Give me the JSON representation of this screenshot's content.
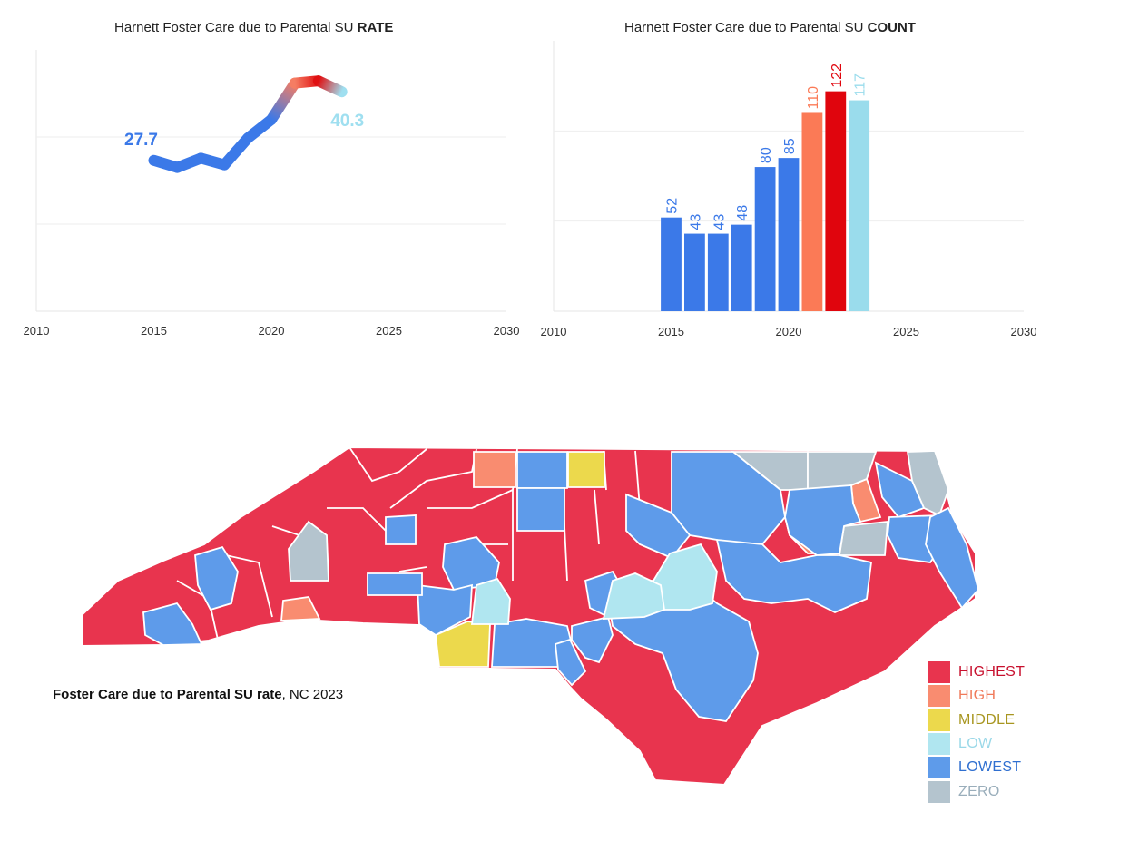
{
  "rate_chart": {
    "title_prefix": "Harnett Foster Care due to Parental SU ",
    "title_bold": "RATE"
  },
  "count_chart": {
    "title_prefix": "Harnett Foster Care due to Parental SU ",
    "title_bold": "COUNT"
  },
  "map": {
    "caption_bold": "Foster Care due to Parental SU rate",
    "caption_rest": ", NC 2023"
  },
  "legend": [
    {
      "label": "HIGHEST",
      "color": "#e8344e",
      "text_color": "#c8102e"
    },
    {
      "label": "HIGH",
      "color": "#f98c70",
      "text_color": "#f07a5a"
    },
    {
      "label": "MIDDLE",
      "color": "#ecd94c",
      "text_color": "#a89620"
    },
    {
      "label": "LOW",
      "color": "#b0e6f0",
      "text_color": "#9ad8e8"
    },
    {
      "label": "LOWEST",
      "color": "#5e9bea",
      "text_color": "#2f6fd0"
    },
    {
      "label": "ZERO",
      "color": "#b4c4ce",
      "text_color": "#9aaebb"
    }
  ],
  "chart_data": [
    {
      "type": "line",
      "title": "Harnett Foster Care due to Parental SU RATE",
      "x": [
        2015,
        2016,
        2017,
        2018,
        2019,
        2020,
        2021,
        2022,
        2023
      ],
      "values": [
        27.7,
        26.4,
        28.1,
        26.9,
        31.8,
        35.2,
        41.9,
        42.3,
        40.3
      ],
      "colors": [
        "#3b79e8",
        "#3b79e8",
        "#3b79e8",
        "#3b79e8",
        "#3b79e8",
        "#3b79e8",
        "#f57d63",
        "#e01012",
        "#9fdff0"
      ],
      "labels": [
        {
          "x": 2015,
          "text": "27.7",
          "color": "#3b79e8"
        },
        {
          "x": 2023,
          "text": "40.3",
          "color": "#9fdff0"
        }
      ],
      "xlim": [
        2010,
        2030
      ],
      "ylim": [
        0,
        48
      ],
      "xticks": [
        "2010",
        "2015",
        "2020",
        "2025",
        "2030"
      ],
      "xlabel": "",
      "ylabel": "",
      "grid": true
    },
    {
      "type": "bar",
      "title": "Harnett Foster Care due to Parental SU COUNT",
      "categories": [
        2015,
        2016,
        2017,
        2018,
        2019,
        2020,
        2021,
        2022,
        2023
      ],
      "values": [
        52,
        43,
        43,
        48,
        80,
        85,
        110,
        122,
        117
      ],
      "colors": [
        "#3b79e8",
        "#3b79e8",
        "#3b79e8",
        "#3b79e8",
        "#3b79e8",
        "#3b79e8",
        "#fb7a56",
        "#e0050d",
        "#9adcec"
      ],
      "xlim": [
        2010,
        2030
      ],
      "ylim": [
        0,
        150
      ],
      "xticks": [
        "2010",
        "2015",
        "2020",
        "2025",
        "2030"
      ],
      "xlabel": "",
      "ylabel": "",
      "grid": true
    }
  ]
}
